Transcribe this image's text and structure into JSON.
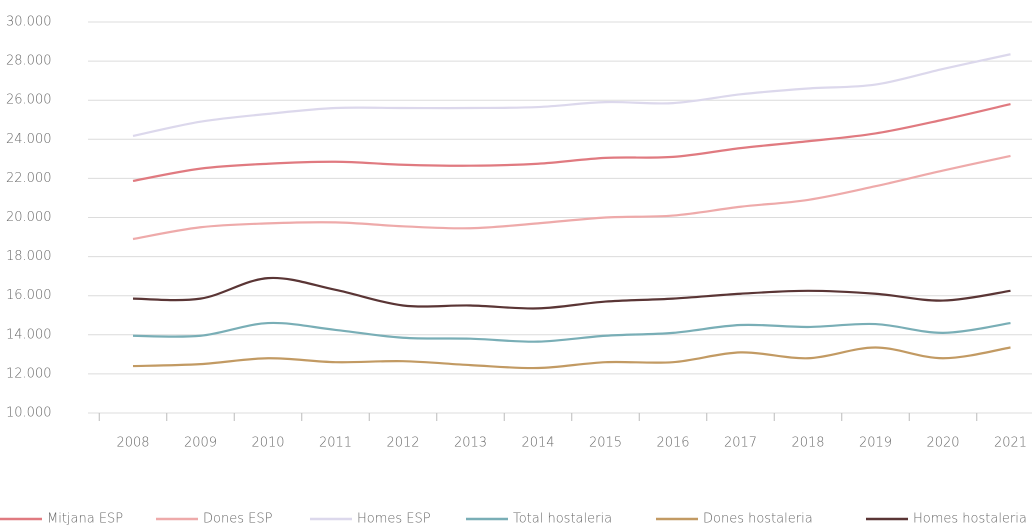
{
  "chart_data": {
    "type": "line",
    "categories": [
      "2008",
      "2009",
      "2010",
      "2011",
      "2012",
      "2013",
      "2014",
      "2015",
      "2016",
      "2017",
      "2018",
      "2019",
      "2020",
      "2021"
    ],
    "series": [
      {
        "name": "Mitjana ESP",
        "color": "#e07a80",
        "values": [
          21870,
          22500,
          22750,
          22850,
          22700,
          22650,
          22750,
          23050,
          23100,
          23550,
          23900,
          24300,
          25000,
          25800
        ]
      },
      {
        "name": "Dones ESP",
        "color": "#eeaaaa",
        "values": [
          18900,
          19500,
          19700,
          19750,
          19550,
          19450,
          19700,
          20000,
          20100,
          20550,
          20900,
          21600,
          22400,
          23150
        ]
      },
      {
        "name": "Homes ESP",
        "color": "#dcd8ec",
        "values": [
          24170,
          24900,
          25300,
          25600,
          25600,
          25600,
          25650,
          25900,
          25850,
          26300,
          26600,
          26800,
          27600,
          28350
        ]
      },
      {
        "name": "Total hostaleria",
        "color": "#79aeb6",
        "values": [
          13950,
          13950,
          14600,
          14250,
          13850,
          13800,
          13650,
          13950,
          14100,
          14500,
          14400,
          14550,
          14100,
          14600
        ]
      },
      {
        "name": "Dones hostaleria",
        "color": "#c29a63",
        "values": [
          12400,
          12500,
          12800,
          12600,
          12650,
          12450,
          12300,
          12600,
          12600,
          13100,
          12800,
          13350,
          12800,
          13350
        ]
      },
      {
        "name": "Homes hostaleria",
        "color": "#5a3535",
        "values": [
          15850,
          15850,
          16900,
          16300,
          15500,
          15500,
          15350,
          15700,
          15850,
          16100,
          16250,
          16100,
          15750,
          16250
        ]
      }
    ],
    "ylim": [
      10000,
      30000
    ],
    "yticks": [
      {
        "value": 10000,
        "label": "10.000"
      },
      {
        "value": 12000,
        "label": "12.000"
      },
      {
        "value": 14000,
        "label": "14.000"
      },
      {
        "value": 16000,
        "label": "16.000"
      },
      {
        "value": 18000,
        "label": "18.000"
      },
      {
        "value": 20000,
        "label": "20.000"
      },
      {
        "value": 22000,
        "label": "22.000"
      },
      {
        "value": 24000,
        "label": "24.000"
      },
      {
        "value": 26000,
        "label": "26.000"
      },
      {
        "value": 28000,
        "label": "28.000"
      },
      {
        "value": 30000,
        "label": "30.000"
      }
    ],
    "grid": true,
    "legend": "bottom"
  }
}
